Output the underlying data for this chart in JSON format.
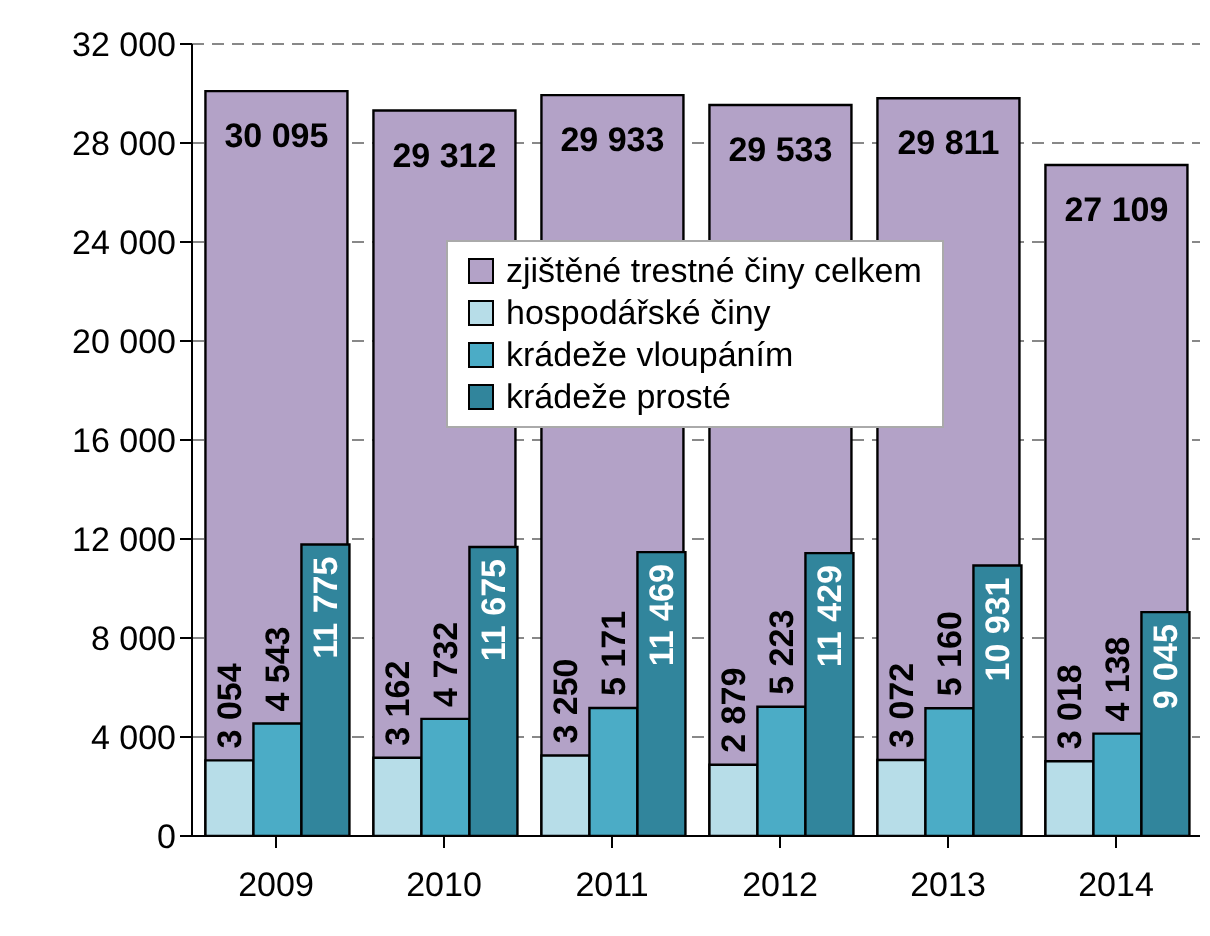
{
  "chart_data": {
    "type": "bar",
    "categories": [
      "2009",
      "2010",
      "2011",
      "2012",
      "2013",
      "2014"
    ],
    "series": [
      {
        "name": "zjištěné trestné činy celkem",
        "color": "#b3a2c7",
        "values": [
          30095,
          29312,
          29933,
          29533,
          29811,
          27109
        ],
        "value_labels": [
          "30 095",
          "29 312",
          "29 933",
          "29 533",
          "29 811",
          "27 109"
        ]
      },
      {
        "name": "hospodářské činy",
        "color": "#b7dde8",
        "values": [
          3054,
          3162,
          3250,
          2879,
          3072,
          3018
        ],
        "value_labels": [
          "3 054",
          "3 162",
          "3 250",
          "2 879",
          "3 072",
          "3 018"
        ]
      },
      {
        "name": "krádeže vloupáním",
        "color": "#4bacc6",
        "values": [
          4543,
          4732,
          5171,
          5223,
          5160,
          4138
        ],
        "value_labels": [
          "4 543",
          "4 732",
          "5 171",
          "5 223",
          "5 160",
          "4 138"
        ]
      },
      {
        "name": "krádeže prosté",
        "color": "#31859c",
        "values": [
          11775,
          11675,
          11469,
          11429,
          10931,
          9045
        ],
        "value_labels": [
          "11 775",
          "11 675",
          "11 469",
          "11 429",
          "10 931",
          "9 045"
        ]
      }
    ],
    "ylim": [
      0,
      32000
    ],
    "yticks": [
      {
        "value": 0,
        "label": "0"
      },
      {
        "value": 4000,
        "label": "4 000"
      },
      {
        "value": 8000,
        "label": "8 000"
      },
      {
        "value": 12000,
        "label": "12 000"
      },
      {
        "value": 16000,
        "label": "16 000"
      },
      {
        "value": 20000,
        "label": "20 000"
      },
      {
        "value": 24000,
        "label": "24 000"
      },
      {
        "value": 28000,
        "label": "28 000"
      },
      {
        "value": 32000,
        "label": "32 000"
      }
    ],
    "grid": "y",
    "legend": "center"
  }
}
